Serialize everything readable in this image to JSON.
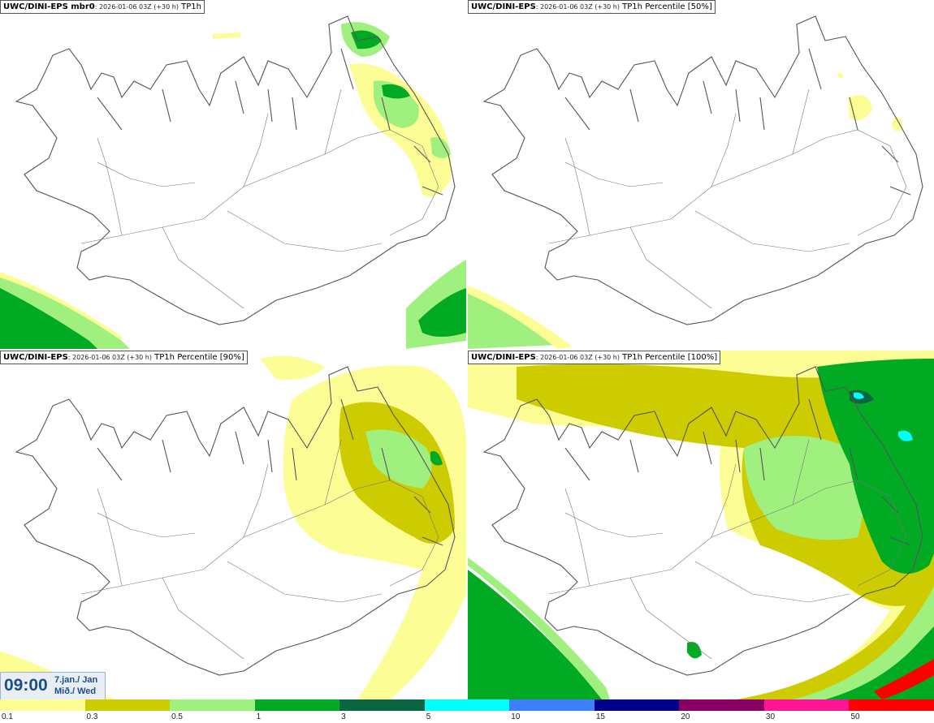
{
  "panels": [
    {
      "model": "UWC/DINI-EPS mbr0",
      "meta": ": 2026-01-06 03Z (+30 h)",
      "field": "TP1h"
    },
    {
      "model": "UWC/DINI-EPS",
      "meta": ": 2026-01-06 03Z (+30 h)",
      "field": "TP1h Percentile [50%]"
    },
    {
      "model": "UWC/DINI-EPS",
      "meta": ": 2026-01-06 03Z (+30 h)",
      "field": "TP1h Percentile [90%]"
    },
    {
      "model": "UWC/DINI-EPS",
      "meta": ": 2026-01-06 03Z (+30 h)",
      "field": "TP1h Percentile [100%]"
    }
  ],
  "time": {
    "clock": "09:00",
    "date_line1": "7.jan./ Jan",
    "date_line2": "Mið./ Wed"
  },
  "legend": {
    "ticks": [
      "0.1",
      "0.3",
      "0.5",
      "1",
      "3",
      "5",
      "10",
      "15",
      "20",
      "30",
      "50"
    ],
    "colors": [
      "#fdfd96",
      "#cccc00",
      "#a0f080",
      "#00aa22",
      "#0a6640",
      "#00ffff",
      "#3f7fff",
      "#000088",
      "#880066",
      "#ff1493",
      "#ff0000"
    ]
  }
}
